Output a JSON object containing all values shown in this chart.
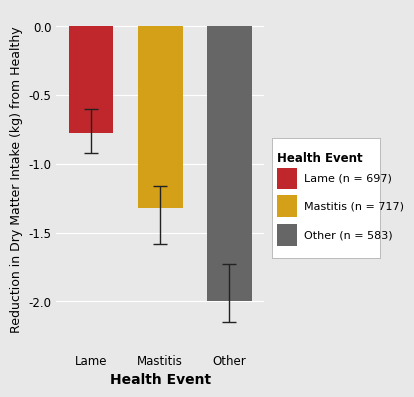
{
  "categories": [
    "Lame",
    "Mastitis",
    "Other"
  ],
  "bar_values": [
    -0.78,
    -1.32,
    -2.0
  ],
  "bar_colors": [
    "#C0272D",
    "#D4A017",
    "#666666"
  ],
  "bar_width": 0.65,
  "xlabel": "Health Event",
  "ylabel": "Reduction in Dry Matter Intake (kg) from Healthy",
  "ylim": [
    -2.35,
    0.12
  ],
  "yticks": [
    0.0,
    -0.5,
    -1.0,
    -1.5,
    -2.0
  ],
  "background_color": "#E8E8E8",
  "panel_color": "#E8E8E8",
  "legend_title": "Health Event",
  "legend_labels": [
    "Lame (n = 697)",
    "Mastitis (n = 717)",
    "Other (n = 583)"
  ],
  "legend_colors": [
    "#C0272D",
    "#D4A017",
    "#666666"
  ],
  "eb_centers": [
    -0.72,
    -1.28,
    -1.85
  ],
  "eb_upper_err": [
    0.12,
    0.12,
    0.12
  ],
  "eb_lower_err": [
    0.2,
    0.3,
    0.3
  ],
  "grid_color": "#FFFFFF",
  "axis_fontsize": 9,
  "tick_fontsize": 8.5,
  "legend_fontsize": 8.5,
  "xlabel_fontsize": 10
}
